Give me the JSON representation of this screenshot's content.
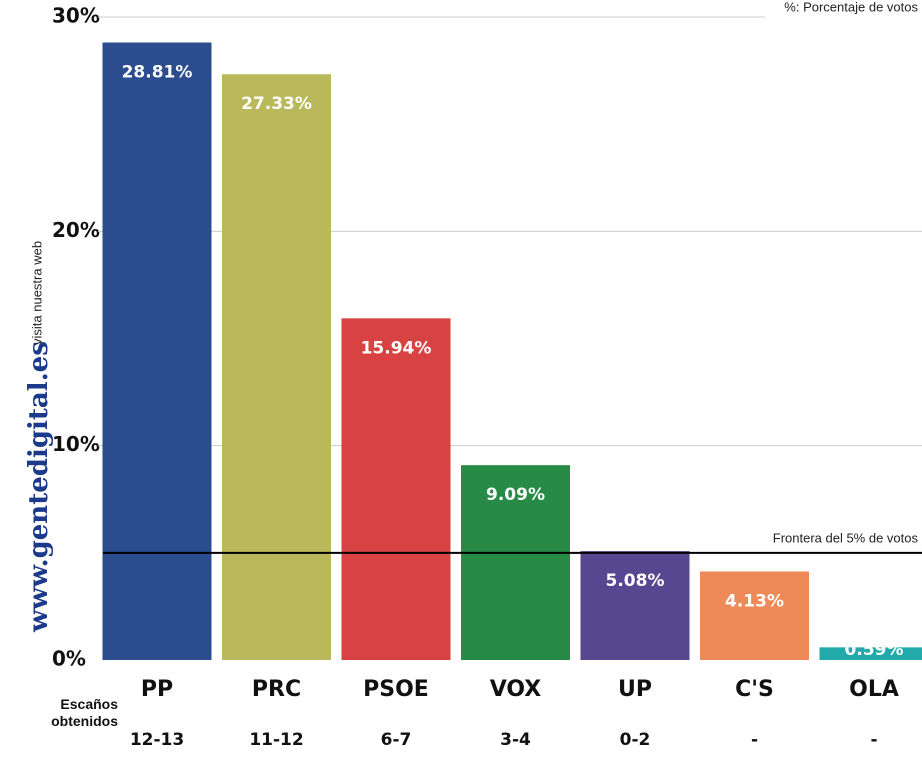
{
  "chart_data": {
    "type": "bar",
    "note": "%: Porcentaje de votos",
    "categories": [
      "PP",
      "PRC",
      "PSOE",
      "VOX",
      "UP",
      "C'S",
      "OLA"
    ],
    "values": [
      28.81,
      27.33,
      15.94,
      9.09,
      5.08,
      4.13,
      0.59
    ],
    "value_labels": [
      "28.81%",
      "27.33%",
      "15.94%",
      "9.09%",
      "5.08%",
      "4.13%",
      "0.59%"
    ],
    "colors": [
      "#2b4c8f",
      "#b9b95c",
      "#d94242",
      "#278a47",
      "#574790",
      "#ee8a58",
      "#22aaaa"
    ],
    "ylim": [
      0,
      30
    ],
    "yticks": [
      {
        "value": 0,
        "label": "0%"
      },
      {
        "value": 10,
        "label": "10%"
      },
      {
        "value": 20,
        "label": "20%"
      },
      {
        "value": 30,
        "label": "30%"
      }
    ],
    "grid": true,
    "threshold": {
      "value": 5,
      "label": "Frontera del 5% de votos"
    },
    "seats_label": "Escaños obtenidos",
    "seats": [
      "12-13",
      "11-12",
      "6-7",
      "3-4",
      "0-2",
      "-",
      "-"
    ],
    "site": "www.gentedigital.es",
    "site_caption": "visita nuestra web"
  }
}
